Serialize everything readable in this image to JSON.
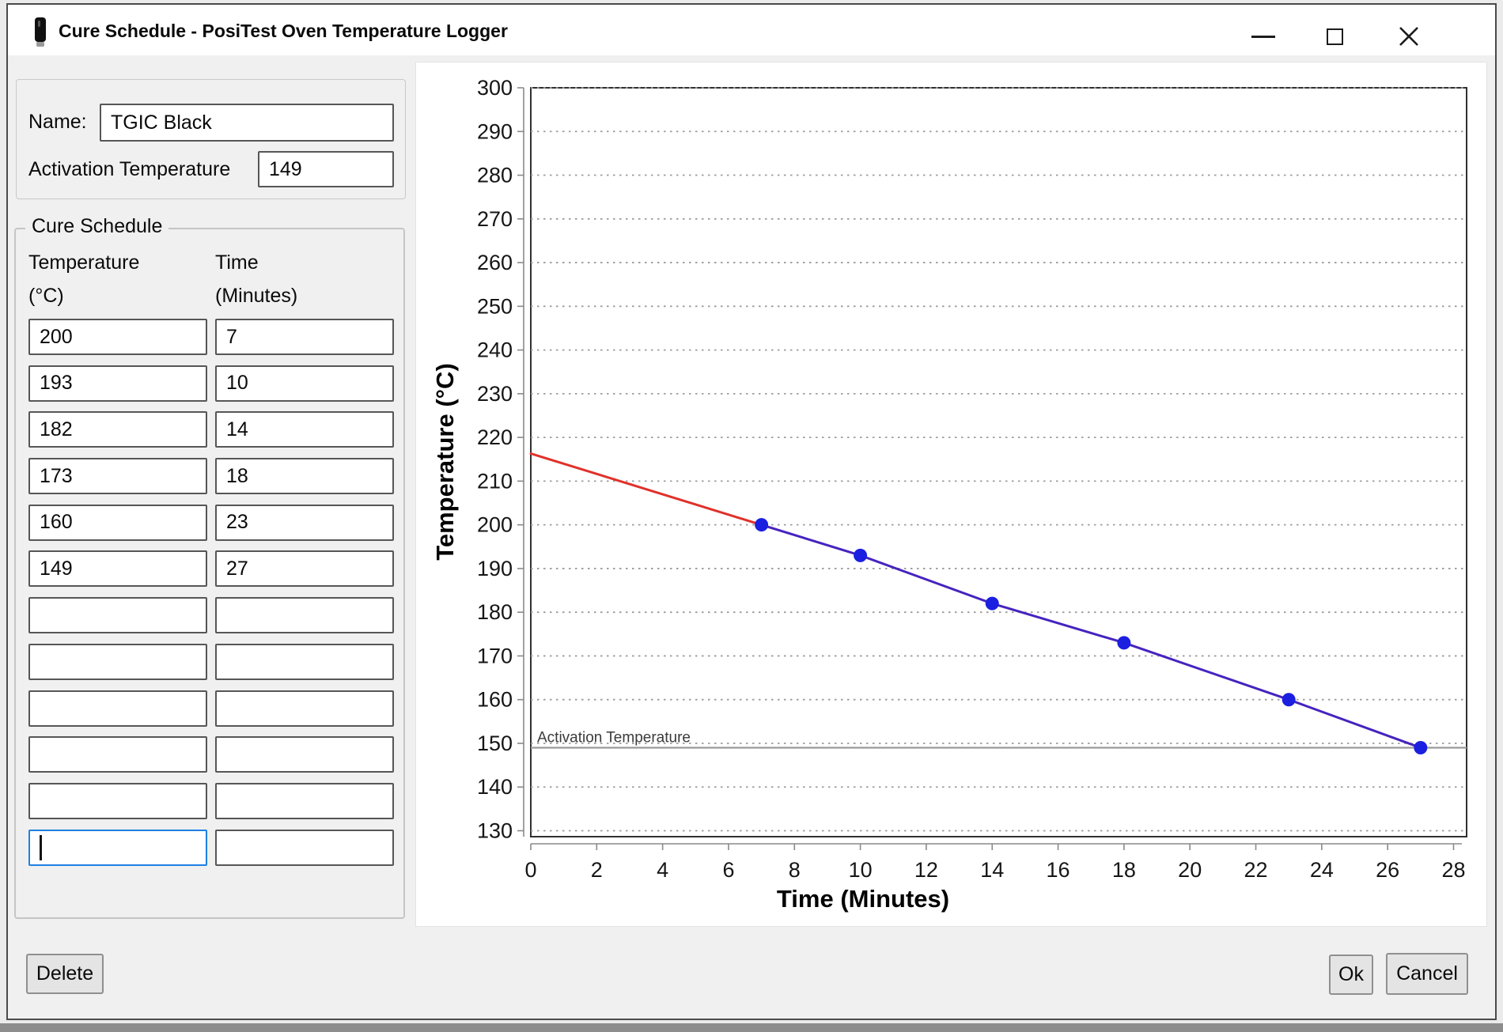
{
  "window": {
    "title": "Cure Schedule - PosiTest Oven Temperature Logger",
    "app_icon": "temperature-probe-icon",
    "controls": [
      {
        "name": "minimize-icon"
      },
      {
        "name": "maximize-icon"
      },
      {
        "name": "close-icon"
      }
    ]
  },
  "form": {
    "name_label": "Name:",
    "name_value": "TGIC Black",
    "activation_label": "Activation Temperature",
    "activation_value": "149"
  },
  "schedule": {
    "legend": "Cure Schedule",
    "temp_header": "Temperature",
    "temp_unit": "(°C)",
    "time_header": "Time",
    "time_unit": "(Minutes)",
    "rows": [
      {
        "temperature": "200",
        "time": "7"
      },
      {
        "temperature": "193",
        "time": "10"
      },
      {
        "temperature": "182",
        "time": "14"
      },
      {
        "temperature": "173",
        "time": "18"
      },
      {
        "temperature": "160",
        "time": "23"
      },
      {
        "temperature": "149",
        "time": "27"
      },
      {
        "temperature": "",
        "time": ""
      },
      {
        "temperature": "",
        "time": ""
      },
      {
        "temperature": "",
        "time": ""
      },
      {
        "temperature": "",
        "time": ""
      },
      {
        "temperature": "",
        "time": ""
      },
      {
        "temperature": "",
        "time": ""
      }
    ],
    "focused_cell": {
      "row": 11,
      "column": "temperature"
    }
  },
  "footer": {
    "delete_label": "Delete",
    "ok_label": "Ok",
    "cancel_label": "Cancel"
  },
  "colors": {
    "focus_accent": "#1e80e2",
    "extrapolation_line": "#e0312a",
    "schedule_line": "#4623bf",
    "marker": "#1b1fdf",
    "activation_line": "#9a9a9a"
  },
  "chart_data": {
    "type": "line",
    "title": "",
    "xlabel": "Time (Minutes)",
    "ylabel": "Temperature (°C)",
    "xlim": [
      0,
      28
    ],
    "ylim": [
      130,
      300
    ],
    "x_ticks": [
      0,
      2,
      4,
      6,
      8,
      10,
      12,
      14,
      16,
      18,
      20,
      22,
      24,
      26,
      28
    ],
    "y_ticks": [
      130,
      140,
      150,
      160,
      170,
      180,
      190,
      200,
      210,
      220,
      230,
      240,
      250,
      260,
      270,
      280,
      290,
      300
    ],
    "grid": "horizontal-dotted",
    "legend_position": "none",
    "series": [
      {
        "name": "extrapolated-warmup",
        "color": "#e0312a",
        "markers": false,
        "points": [
          [
            0,
            216.3
          ],
          [
            7,
            200
          ]
        ]
      },
      {
        "name": "cure-schedule",
        "color": "#4623bf",
        "marker_color": "#1b1fdf",
        "markers": true,
        "points": [
          [
            7,
            200
          ],
          [
            10,
            193
          ],
          [
            14,
            182
          ],
          [
            18,
            173
          ],
          [
            23,
            160
          ],
          [
            27,
            149
          ]
        ]
      }
    ],
    "annotations": [
      {
        "type": "hline",
        "y": 149,
        "color": "#9a9a9a",
        "label": "Activation Temperature"
      }
    ]
  }
}
